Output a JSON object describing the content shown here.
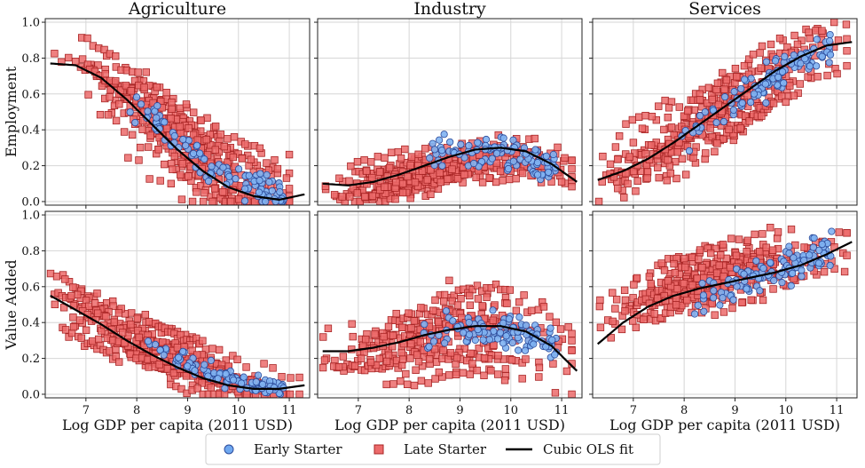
{
  "chart_data": {
    "type": "scatter",
    "columns": [
      "Agriculture",
      "Industry",
      "Services"
    ],
    "row_labels": [
      "Employment",
      "Value Added"
    ],
    "xlabel": "Log GDP per capita (2011 USD)",
    "xlim": [
      6.2,
      11.4
    ],
    "ylim": [
      -0.02,
      1.02
    ],
    "x_ticks": [
      7,
      8,
      9,
      10,
      11
    ],
    "y_ticks": [
      0.0,
      0.2,
      0.4,
      0.6,
      0.8,
      1.0
    ],
    "y_tick_labels": [
      "0.0",
      "0.2",
      "0.4",
      "0.6",
      "0.8",
      "1.0"
    ],
    "grid": true,
    "legend": {
      "placement": "bottom-center",
      "entries": [
        {
          "label": "Early Starter",
          "marker": "circle",
          "color": "#6fa8f0",
          "edge": "#2b4a9a"
        },
        {
          "label": "Late Starter",
          "marker": "square",
          "color": "#ec6b6b",
          "edge": "#a82424"
        },
        {
          "label": "Cubic OLS fit",
          "marker": "line",
          "color": "#000000"
        }
      ]
    },
    "panels": [
      {
        "row": "Employment",
        "column": "Agriculture",
        "fit": {
          "x": [
            6.3,
            6.8,
            7.3,
            7.8,
            8.3,
            8.8,
            9.3,
            9.8,
            10.3,
            10.8,
            11.3
          ],
          "y": [
            0.77,
            0.76,
            0.69,
            0.57,
            0.43,
            0.29,
            0.17,
            0.08,
            0.03,
            0.01,
            0.04
          ]
        },
        "early": {
          "x_range": [
            7.8,
            10.9
          ],
          "y_center": [
            0.52,
            0.02
          ],
          "spread": 0.08
        },
        "late": {
          "x_range": [
            6.3,
            11.0
          ],
          "y_center": [
            0.82,
            0.0
          ],
          "spread": 0.13
        }
      },
      {
        "row": "Employment",
        "column": "Industry",
        "fit": {
          "x": [
            6.3,
            6.8,
            7.3,
            7.8,
            8.3,
            8.8,
            9.3,
            9.8,
            10.3,
            10.8,
            11.3
          ],
          "y": [
            0.1,
            0.09,
            0.11,
            0.15,
            0.2,
            0.25,
            0.29,
            0.3,
            0.28,
            0.21,
            0.11
          ]
        },
        "early": {
          "x_range": [
            8.2,
            10.9
          ],
          "y_center": [
            0.33,
            0.18
          ],
          "spread": 0.08
        },
        "late": {
          "x_range": [
            6.3,
            11.2
          ],
          "y_center": [
            0.06,
            0.22
          ],
          "spread": 0.07
        }
      },
      {
        "row": "Employment",
        "column": "Services",
        "fit": {
          "x": [
            6.3,
            6.8,
            7.3,
            7.8,
            8.3,
            8.8,
            9.3,
            9.8,
            10.3,
            10.8,
            11.3
          ],
          "y": [
            0.12,
            0.17,
            0.24,
            0.33,
            0.43,
            0.53,
            0.63,
            0.73,
            0.81,
            0.87,
            0.89
          ]
        },
        "early": {
          "x_range": [
            7.8,
            10.9
          ],
          "y_center": [
            0.32,
            0.86
          ],
          "spread": 0.08
        },
        "late": {
          "x_range": [
            6.3,
            11.2
          ],
          "y_center": [
            0.12,
            0.9
          ],
          "spread": 0.11
        }
      },
      {
        "row": "Value Added",
        "column": "Agriculture",
        "fit": {
          "x": [
            6.3,
            6.8,
            7.3,
            7.8,
            8.3,
            8.8,
            9.3,
            9.8,
            10.3,
            10.8,
            11.3
          ],
          "y": [
            0.55,
            0.47,
            0.39,
            0.3,
            0.22,
            0.15,
            0.09,
            0.05,
            0.03,
            0.03,
            0.05
          ]
        },
        "early": {
          "x_range": [
            8.0,
            10.9
          ],
          "y_center": [
            0.35,
            0.01
          ],
          "spread": 0.05
        },
        "late": {
          "x_range": [
            6.3,
            11.2
          ],
          "y_center": [
            0.5,
            0.0
          ],
          "spread": 0.08
        }
      },
      {
        "row": "Value Added",
        "column": "Industry",
        "fit": {
          "x": [
            6.3,
            6.8,
            7.3,
            7.8,
            8.3,
            8.8,
            9.3,
            9.8,
            10.3,
            10.8,
            11.3
          ],
          "y": [
            0.24,
            0.24,
            0.26,
            0.29,
            0.33,
            0.36,
            0.38,
            0.38,
            0.35,
            0.27,
            0.13
          ]
        },
        "early": {
          "x_range": [
            8.2,
            10.9
          ],
          "y_center": [
            0.38,
            0.28
          ],
          "spread": 0.07
        },
        "late": {
          "x_range": [
            6.3,
            11.2
          ],
          "y_center": [
            0.25,
            0.27
          ],
          "spread": 0.1
        }
      },
      {
        "row": "Value Added",
        "column": "Services",
        "fit": {
          "x": [
            6.3,
            6.8,
            7.3,
            7.8,
            8.3,
            8.8,
            9.3,
            9.8,
            10.3,
            10.8,
            11.3
          ],
          "y": [
            0.28,
            0.4,
            0.49,
            0.55,
            0.59,
            0.62,
            0.65,
            0.68,
            0.72,
            0.78,
            0.85
          ]
        },
        "early": {
          "x_range": [
            8.0,
            10.9
          ],
          "y_center": [
            0.45,
            0.85
          ],
          "spread": 0.09
        },
        "late": {
          "x_range": [
            6.3,
            11.2
          ],
          "y_center": [
            0.42,
            0.88
          ],
          "spread": 0.09
        }
      }
    ]
  }
}
